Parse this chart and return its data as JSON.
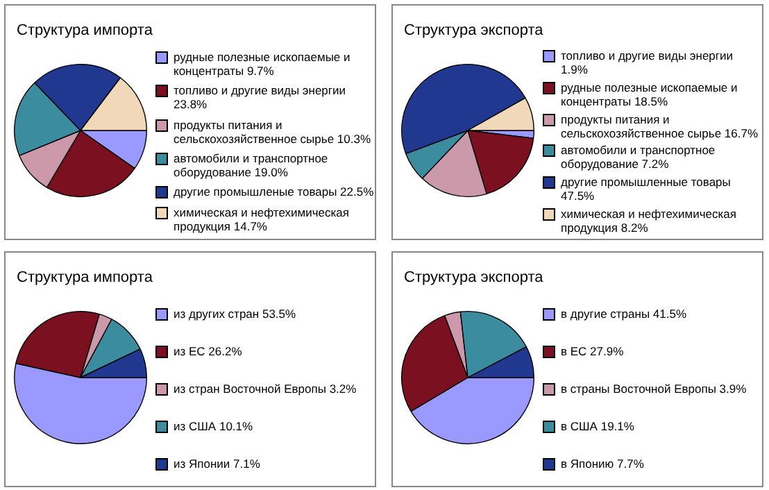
{
  "chart_data": [
    {
      "type": "pie",
      "title": "Структура импорта",
      "legend": "right",
      "categories": [
        "рудные полезные ископаемые и концентраты",
        "топливо и другие виды энергии",
        "продукты питания и сельскохозяйственное сырье",
        "автомобили и транспортное оборудование",
        "другие промышленые товары",
        "химическая и нефтехимическая продукция"
      ],
      "values": [
        9.7,
        23.8,
        10.3,
        19.0,
        22.5,
        14.7
      ],
      "value_labels": [
        "9.7%",
        "23.8%",
        "10.3%",
        "19.0%",
        "22.5%",
        "14.7%"
      ],
      "colors": [
        "#9999ff",
        "#7a1020",
        "#cc99aa",
        "#3c8ca0",
        "#203890",
        "#f0d8b8"
      ]
    },
    {
      "type": "pie",
      "title": "Структура экспорта",
      "legend": "right",
      "categories": [
        "топливо и другие виды энергии",
        "рудные полезные ископаемые и концентраты",
        "продукты питания и сельскохозяйственное сырье",
        "автомобили и транспортное оборудование",
        "другие промышленные товары",
        "химическая и нефтехимическая продукция"
      ],
      "values": [
        1.9,
        18.5,
        16.7,
        7.2,
        47.5,
        8.2
      ],
      "value_labels": [
        "1.9%",
        "18.5%",
        "16.7%",
        "7.2%",
        "47.5%",
        "8.2%"
      ],
      "colors": [
        "#9999ff",
        "#7a1020",
        "#cc99aa",
        "#3c8ca0",
        "#203890",
        "#f0d8b8"
      ]
    },
    {
      "type": "pie",
      "title": "Структура импорта",
      "legend": "right",
      "categories": [
        "из других стран",
        "из ЕС",
        "из стран Восточной Европы",
        "из США",
        "из Японии"
      ],
      "values": [
        53.5,
        26.2,
        3.2,
        10.1,
        7.1
      ],
      "value_labels": [
        "53.5%",
        "26.2%",
        "3.2%",
        "10.1%",
        "7.1%"
      ],
      "colors": [
        "#9999ff",
        "#7a1020",
        "#cc99aa",
        "#3c8ca0",
        "#203890"
      ]
    },
    {
      "type": "pie",
      "title": "Структура экспорта",
      "legend": "right",
      "categories": [
        "в другие страны",
        "в ЕС",
        "в страны Восточной Европы",
        "в США",
        "в Японию"
      ],
      "values": [
        41.5,
        27.9,
        3.9,
        19.1,
        7.7
      ],
      "value_labels": [
        "41.5%",
        "27.9%",
        "3.9%",
        "19.1%",
        "7.7%"
      ],
      "colors": [
        "#9999ff",
        "#7a1020",
        "#cc99aa",
        "#3c8ca0",
        "#203890"
      ]
    }
  ]
}
